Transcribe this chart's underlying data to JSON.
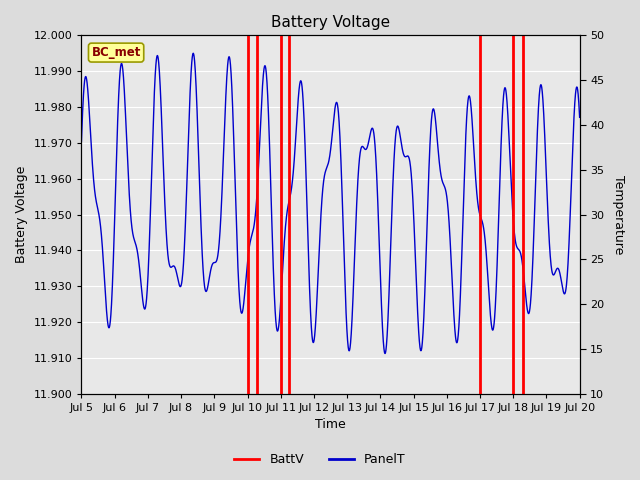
{
  "title": "Battery Voltage",
  "xlabel": "Time",
  "ylabel_left": "Battery Voltage",
  "ylabel_right": "Temperature",
  "annotation_text": "BC_met",
  "ylim_left": [
    11.9,
    12.0
  ],
  "ylim_right": [
    10,
    50
  ],
  "yticks_left": [
    11.9,
    11.91,
    11.92,
    11.93,
    11.94,
    11.95,
    11.96,
    11.97,
    11.98,
    11.99,
    12.0
  ],
  "yticks_right": [
    10,
    15,
    20,
    25,
    30,
    35,
    40,
    45,
    50
  ],
  "xtick_labels": [
    "Jul 5",
    "Jul 6",
    "Jul 7",
    "Jul 8",
    "Jul 9",
    "Jul 10",
    "Jul 11",
    "Jul 12",
    "Jul 13",
    "Jul 14",
    "Jul 15",
    "Jul 16",
    "Jul 17",
    "Jul 18",
    "Jul 19",
    "Jul 20"
  ],
  "xlim": [
    0,
    15
  ],
  "red_vlines": [
    5.0,
    5.3,
    6.0,
    6.25,
    12.0,
    13.0,
    13.3
  ],
  "background_color": "#dcdcdc",
  "plot_bg_color": "#e8e8e8",
  "line_color_batt": "#ff0000",
  "line_color_panel": "#0000cc",
  "annotation_bg": "#ffff99",
  "annotation_border": "#999900",
  "annotation_text_color": "#880000",
  "legend_batt_color": "#ff0000",
  "legend_panel_color": "#0000cc"
}
